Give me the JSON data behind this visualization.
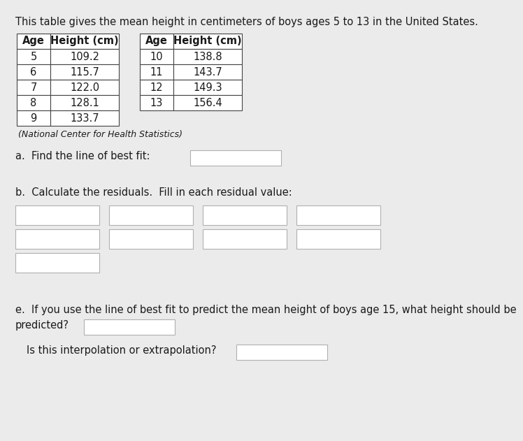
{
  "title": "This table gives the mean height in centimeters of boys ages 5 to 13 in the United States.",
  "source": "(National Center for Health Statistics)",
  "table1_headers": [
    "Age",
    "Height (cm)"
  ],
  "table1_data": [
    [
      "5",
      "109.2"
    ],
    [
      "6",
      "115.7"
    ],
    [
      "7",
      "122.0"
    ],
    [
      "8",
      "128.1"
    ],
    [
      "9",
      "133.7"
    ]
  ],
  "table2_headers": [
    "Age",
    "Height (cm)"
  ],
  "table2_data": [
    [
      "10",
      "138.8"
    ],
    [
      "11",
      "143.7"
    ],
    [
      "12",
      "149.3"
    ],
    [
      "13",
      "156.4"
    ]
  ],
  "section_a": "a.  Find the line of best fit:",
  "section_b": "b.  Calculate the residuals.  Fill in each residual value:",
  "section_e_line1": "e.  If you use the line of best fit to predict the mean height of boys age 15, what height should be",
  "section_e_line2": "predicted?",
  "section_e2": "Is this interpolation or extrapolation?",
  "bg_color": "#ebebeb",
  "table_bg": "#ffffff",
  "box_border": "#b0b0b0",
  "text_color": "#1a1a1a",
  "title_fontsize": 10.5,
  "body_fontsize": 10.5,
  "small_fontsize": 9.0,
  "table_fontsize": 10.5
}
